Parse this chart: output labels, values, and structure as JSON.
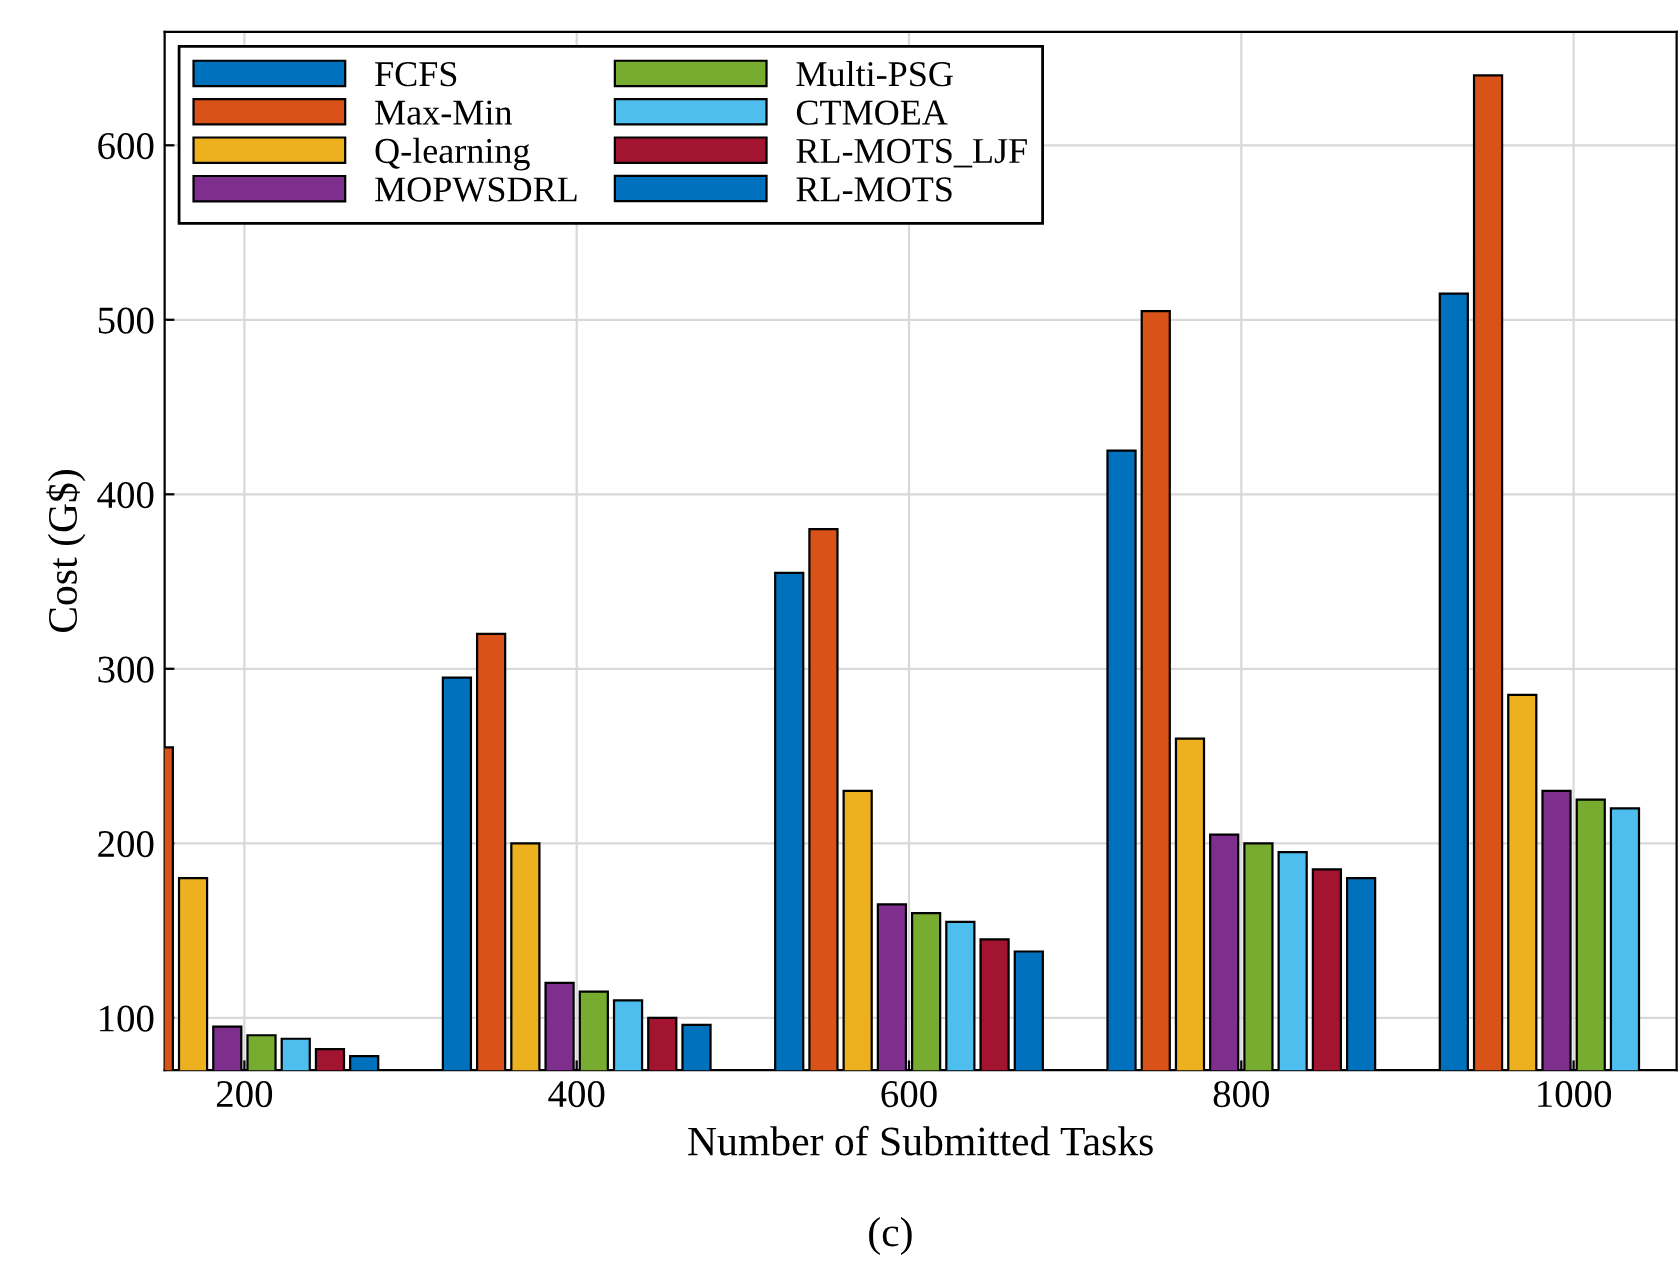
{
  "chart_data": {
    "type": "bar",
    "xlabel": "Number of Submitted Tasks",
    "ylabel": "Cost (G$)",
    "annotations": [
      "(c)"
    ],
    "x": [
      200,
      400,
      600,
      800,
      1000
    ],
    "series": [
      {
        "name": "FCFS",
        "color": "#0072bd",
        "values": [
          null,
          295,
          355,
          425,
          515
        ]
      },
      {
        "name": "Max-Min",
        "color": "#d95319",
        "values": [
          255,
          320,
          380,
          505,
          640
        ]
      },
      {
        "name": "Q-learning",
        "color": "#edb120",
        "values": [
          180,
          200,
          230,
          260,
          285
        ]
      },
      {
        "name": "MOPWSDRL",
        "color": "#7e2f8e",
        "values": [
          95,
          120,
          165,
          205,
          230
        ]
      },
      {
        "name": "Multi-PSG",
        "color": "#77ac30",
        "values": [
          90,
          115,
          160,
          200,
          225
        ]
      },
      {
        "name": "CTMOEA",
        "color": "#4dbeee",
        "values": [
          88,
          110,
          155,
          195,
          220
        ]
      },
      {
        "name": "RL-MOTS_LJF",
        "color": "#a2142f",
        "values": [
          82,
          100,
          145,
          185,
          null
        ]
      },
      {
        "name": "RL-MOTS",
        "color": "#0072bd",
        "values": [
          78,
          96,
          138,
          180,
          null
        ]
      }
    ],
    "xlim": [
      152,
      1062
    ],
    "xticks": [
      200,
      400,
      600,
      800,
      1000
    ],
    "ylim": [
      70,
      665
    ],
    "yticks": [
      100,
      200,
      300,
      400,
      500,
      600
    ],
    "grid": true,
    "legend": "top left"
  }
}
